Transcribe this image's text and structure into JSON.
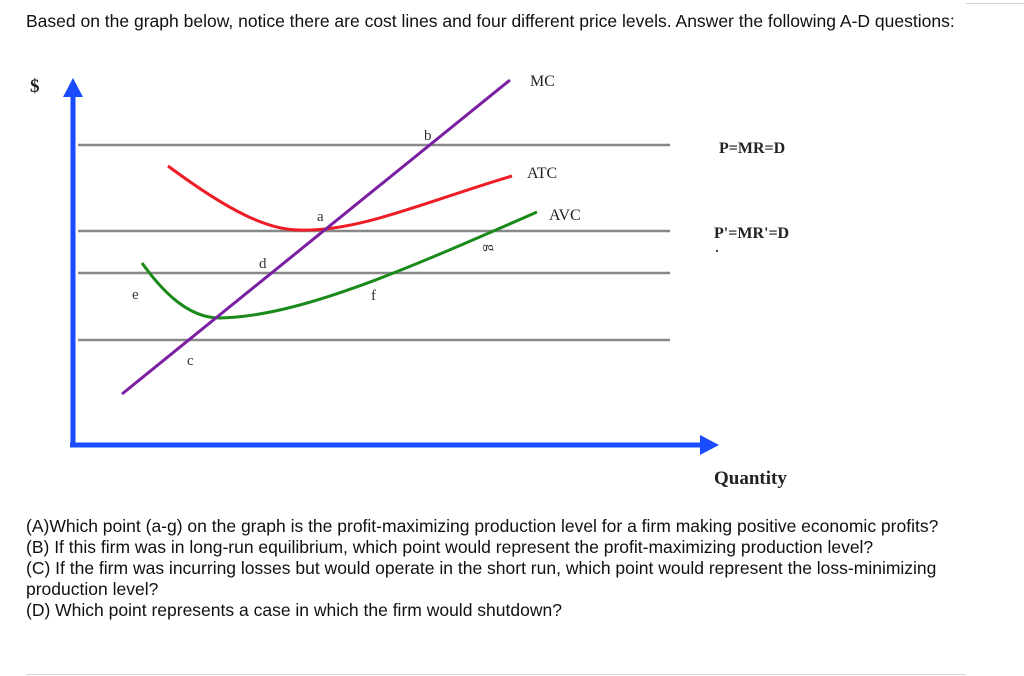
{
  "intro_text": "Based on the graph below, notice there are cost lines and four different price levels. Answer the following A-D questions:",
  "chart_data": {
    "type": "line",
    "title": "",
    "xlabel": "Quantity",
    "ylabel": "$",
    "curves": [
      {
        "name": "MC",
        "color": "#7b1fa2"
      },
      {
        "name": "ATC",
        "color": "#ee1c24"
      },
      {
        "name": "AVC",
        "color": "#1a8a1a"
      }
    ],
    "price_lines": [
      {
        "label": "P=MR=D"
      },
      {
        "label": "P'=MR'=D"
      },
      {
        "label": ""
      },
      {
        "label": ""
      }
    ],
    "points": [
      "a",
      "b",
      "c",
      "d",
      "e",
      "f",
      "g"
    ],
    "colors": {
      "axes": "#1a4cff",
      "price_lines": "#888888"
    }
  },
  "questions": [
    "(A)Which point (a-g) on the graph is the profit-maximizing production level for a firm making positive economic profits?",
    "(B) If this firm was in long-run equilibrium, which point would represent the profit-maximizing production level?",
    "(C) If the firm was incurring losses but would operate in the short run, which point would represent the loss-minimizing production level?",
    "(D) Which point represents a case in which the firm would shutdown?"
  ]
}
